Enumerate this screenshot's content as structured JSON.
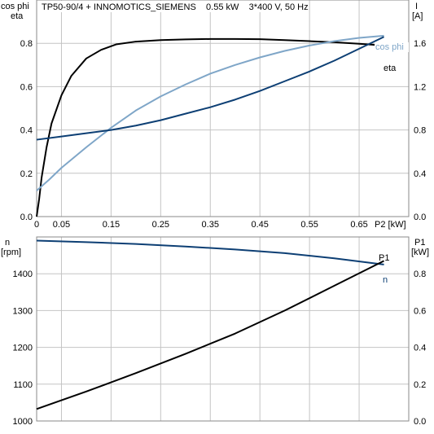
{
  "title": "TP50-90/4 + INNOMOTICS_SIEMENS    0.55 kW    3*400 V, 50 Hz",
  "colors": {
    "black": "#000000",
    "dark_blue": "#0d3f74",
    "light_blue": "#7fa6c8",
    "grid": "#c4c4c4"
  },
  "chart_data": [
    {
      "type": "line",
      "grid": true,
      "x_axis": {
        "label": "P2 [kW]",
        "range": [
          0,
          0.75
        ],
        "ticks": [
          "0",
          "0.05",
          "0.15",
          "0.25",
          "0.35",
          "0.45",
          "0.55",
          "0.65"
        ],
        "tick_values": [
          0,
          0.05,
          0.15,
          0.25,
          0.35,
          0.45,
          0.55,
          0.65
        ]
      },
      "y_left": {
        "label": [
          "cos phi",
          "eta"
        ],
        "range": [
          0,
          1.0
        ],
        "ticks": [
          "0.0",
          "0.2",
          "0.4",
          "0.6",
          "0.8"
        ],
        "tick_values": [
          0,
          0.2,
          0.4,
          0.6,
          0.8
        ]
      },
      "y_right": {
        "label": [
          "I",
          "[A]"
        ],
        "range": [
          0,
          2.0
        ],
        "ticks": [
          "0.0",
          "0.4",
          "0.8",
          "1.2",
          "1.6"
        ],
        "tick_values": [
          0,
          0.4,
          0.8,
          1.2,
          1.6
        ]
      },
      "series": [
        {
          "name": "eta",
          "axis": "left",
          "color": "#000000",
          "x": [
            0,
            0.005,
            0.01,
            0.02,
            0.03,
            0.05,
            0.07,
            0.1,
            0.13,
            0.16,
            0.2,
            0.25,
            0.3,
            0.35,
            0.4,
            0.45,
            0.5,
            0.55,
            0.6,
            0.65,
            0.7
          ],
          "y": [
            0,
            0.08,
            0.18,
            0.32,
            0.43,
            0.56,
            0.65,
            0.73,
            0.77,
            0.795,
            0.808,
            0.815,
            0.818,
            0.82,
            0.82,
            0.819,
            0.815,
            0.81,
            0.805,
            0.798,
            0.79
          ]
        },
        {
          "name": "cos phi",
          "axis": "left",
          "color": "#7fa6c8",
          "x": [
            0,
            0.025,
            0.05,
            0.1,
            0.15,
            0.2,
            0.25,
            0.3,
            0.35,
            0.4,
            0.45,
            0.5,
            0.55,
            0.6,
            0.65,
            0.7
          ],
          "y": [
            0.12,
            0.17,
            0.225,
            0.32,
            0.41,
            0.49,
            0.555,
            0.61,
            0.66,
            0.7,
            0.735,
            0.765,
            0.79,
            0.81,
            0.825,
            0.835
          ]
        },
        {
          "name": "I",
          "axis": "right",
          "color": "#0d3f74",
          "x": [
            0,
            0.05,
            0.1,
            0.15,
            0.2,
            0.25,
            0.3,
            0.35,
            0.4,
            0.45,
            0.5,
            0.55,
            0.6,
            0.65,
            0.7
          ],
          "y": [
            0.71,
            0.74,
            0.77,
            0.8,
            0.84,
            0.89,
            0.95,
            1.01,
            1.08,
            1.16,
            1.25,
            1.34,
            1.44,
            1.55,
            1.66
          ]
        }
      ]
    },
    {
      "type": "line",
      "grid": true,
      "x_axis": {
        "range": [
          0,
          0.75
        ]
      },
      "y_left": {
        "label": [
          "n",
          "[rpm]"
        ],
        "range": [
          1000,
          1500
        ],
        "ticks": [
          "1000",
          "1100",
          "1200",
          "1300",
          "1400"
        ],
        "tick_values": [
          1000,
          1100,
          1200,
          1300,
          1400
        ]
      },
      "y_right": {
        "label": [
          "P1",
          "[kW]"
        ],
        "range": [
          0,
          1.0
        ],
        "ticks": [
          "0.0",
          "0.2",
          "0.4",
          "0.6",
          "0.8"
        ],
        "tick_values": [
          0,
          0.2,
          0.4,
          0.6,
          0.8
        ]
      },
      "series": [
        {
          "name": "n",
          "axis": "left",
          "color": "#0d3f74",
          "x": [
            0,
            0.1,
            0.2,
            0.3,
            0.4,
            0.5,
            0.6,
            0.7
          ],
          "y": [
            1490,
            1486,
            1481,
            1474,
            1466,
            1456,
            1442,
            1425
          ]
        },
        {
          "name": "P1",
          "axis": "right",
          "color": "#000000",
          "x": [
            0,
            0.1,
            0.2,
            0.3,
            0.4,
            0.5,
            0.6,
            0.7
          ],
          "y": [
            0.065,
            0.16,
            0.26,
            0.365,
            0.475,
            0.6,
            0.735,
            0.87
          ]
        }
      ]
    }
  ]
}
